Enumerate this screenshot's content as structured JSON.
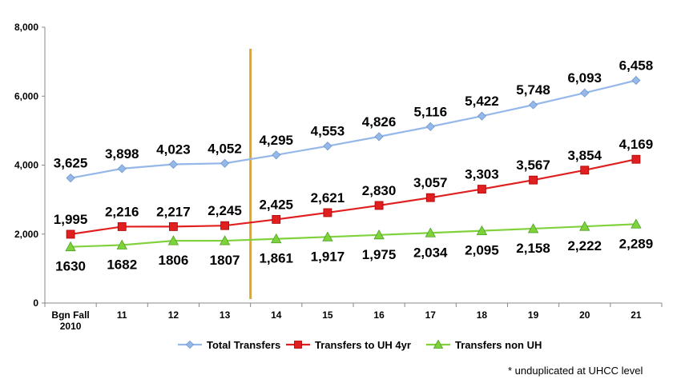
{
  "chart_data": {
    "type": "line",
    "categories": [
      [
        "Bgn Fall",
        "2010"
      ],
      [
        "11"
      ],
      [
        "12"
      ],
      [
        "13"
      ],
      [
        "14"
      ],
      [
        "15"
      ],
      [
        "16"
      ],
      [
        "17"
      ],
      [
        "18"
      ],
      [
        "19"
      ],
      [
        "20"
      ],
      [
        "21"
      ]
    ],
    "ylim": [
      0,
      8000
    ],
    "yticks": [
      "0",
      "2,000",
      "4,000",
      "6,000",
      "8,000"
    ],
    "ytick_values": [
      0,
      2000,
      4000,
      6000,
      8000
    ],
    "grid": false,
    "legend_position": "bottom",
    "divider_after_category": 3,
    "divider_color": "#E0A820",
    "series": [
      {
        "name": "Total Transfers",
        "color": "#95B8E8",
        "marker": "diamond",
        "values": [
          3625,
          3898,
          4023,
          4052,
          4295,
          4553,
          4826,
          5116,
          5422,
          5748,
          6093,
          6458
        ],
        "labels": [
          "3,625",
          "3,898",
          "4,023",
          "4,052",
          "4,295",
          "4,553",
          "4,826",
          "5,116",
          "5,422",
          "5,748",
          "6,093",
          "6,458"
        ]
      },
      {
        "name": "Transfers to UH 4yr",
        "color": "#E02020",
        "marker": "square",
        "values": [
          1995,
          2216,
          2217,
          2245,
          2425,
          2621,
          2830,
          3057,
          3303,
          3567,
          3854,
          4169
        ],
        "labels": [
          "1,995",
          "2,216",
          "2,217",
          "2,245",
          "2,425",
          "2,621",
          "2,830",
          "3,057",
          "3,303",
          "3,567",
          "3,854",
          "4,169"
        ]
      },
      {
        "name": "Transfers non UH",
        "color": "#7FD23C",
        "marker": "triangle",
        "values": [
          1630,
          1682,
          1806,
          1807,
          1861,
          1917,
          1975,
          2034,
          2095,
          2158,
          2222,
          2289
        ],
        "labels": [
          "1630",
          "1682",
          "1806",
          "1807",
          "1,861",
          "1,917",
          "1,975",
          "2,034",
          "2,095",
          "2,158",
          "2,222",
          "2,289"
        ]
      }
    ],
    "footnote": "* unduplicated at UHCC level"
  }
}
